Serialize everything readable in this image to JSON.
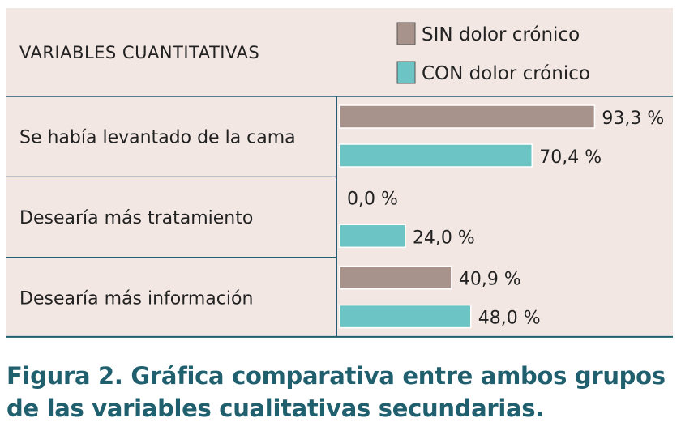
{
  "chart_data": {
    "type": "bar",
    "orientation": "horizontal",
    "header_label": "VARIABLES CUANTITATIVAS",
    "categories": [
      "Se había levantado de la cama",
      "Desearía más tratamiento",
      "Desearía más información"
    ],
    "series": [
      {
        "name": "SIN dolor crónico",
        "color": "#a7928c",
        "values": [
          93.3,
          0.0,
          40.9
        ],
        "labels": [
          "93,3 %",
          "0,0 %",
          "40,9 %"
        ]
      },
      {
        "name": "CON dolor crónico",
        "color": "#6cc4c4",
        "values": [
          70.4,
          24.0,
          48.0
        ],
        "labels": [
          "70,4 %",
          "24,0 %",
          "48,0 %"
        ]
      }
    ],
    "xlim": [
      0,
      100
    ],
    "legend": "top-right",
    "background_color": "#f3e7e3",
    "divider_color": "#1f5f6e"
  },
  "caption": {
    "line1": "Figura 2. Gráfica comparativa entre ambos grupos",
    "line2": "de las variables cualitativas secundarias."
  }
}
